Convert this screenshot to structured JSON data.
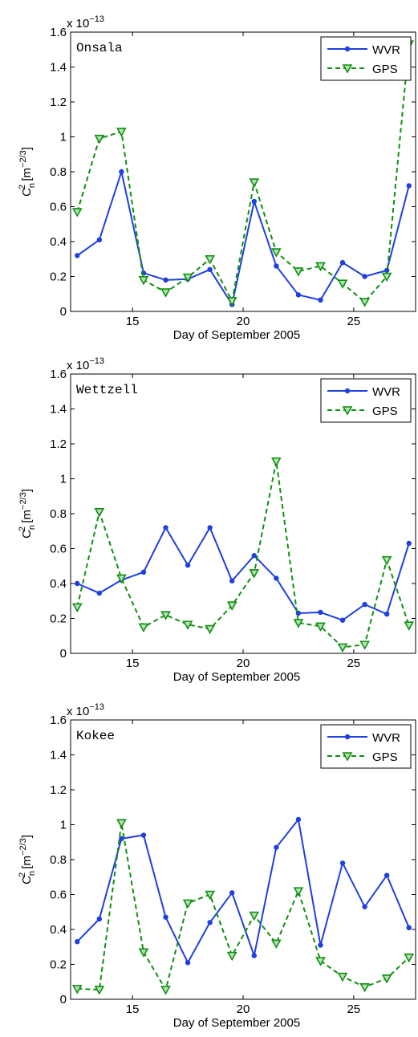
{
  "chart_data": [
    {
      "type": "line",
      "title": "Onsala",
      "legend": "upper right",
      "x": [
        12.5,
        13.5,
        14.5,
        15.5,
        16.5,
        17.5,
        18.5,
        19.5,
        20.5,
        21.5,
        22.5,
        23.5,
        24.5,
        25.5,
        26.5,
        27.5
      ],
      "series": [
        {
          "name": "WVR",
          "color": "#1f3fe0",
          "marker": "circle",
          "dash": false,
          "values": [
            0.32,
            0.41,
            0.8,
            0.22,
            0.18,
            0.185,
            0.24,
            0.04,
            0.63,
            0.26,
            0.095,
            0.065,
            0.28,
            0.2,
            0.235,
            0.72
          ]
        },
        {
          "name": "GPS",
          "color": "#109010",
          "marker": "triangle-down",
          "dash": true,
          "values": [
            0.57,
            0.99,
            1.03,
            0.18,
            0.11,
            0.195,
            0.3,
            0.06,
            0.74,
            0.34,
            0.23,
            0.26,
            0.16,
            0.055,
            0.2,
            1.53
          ]
        }
      ],
      "xlim": [
        12.2,
        27.8
      ],
      "xticks": [
        15,
        20,
        25
      ],
      "ylim": [
        0,
        1.6
      ],
      "yticks": [
        0,
        0.2,
        0.4,
        0.6,
        0.8,
        1,
        1.2,
        1.4,
        1.6
      ],
      "xlabel": "Day of September 2005",
      "ylabel": [
        "C",
        "n",
        "2",
        " [m",
        "−2/3",
        "]"
      ],
      "multiplier": [
        "x 10",
        "−13"
      ]
    },
    {
      "type": "line",
      "title": "Wettzell",
      "legend": "upper right",
      "x": [
        12.5,
        13.5,
        14.5,
        15.5,
        16.5,
        17.5,
        18.5,
        19.5,
        20.5,
        21.5,
        22.5,
        23.5,
        24.5,
        25.5,
        26.5,
        27.5
      ],
      "series": [
        {
          "name": "WVR",
          "color": "#1f3fe0",
          "marker": "circle",
          "dash": false,
          "values": [
            0.4,
            0.345,
            0.42,
            0.465,
            0.72,
            0.505,
            0.72,
            0.415,
            0.56,
            0.43,
            0.23,
            0.235,
            0.19,
            0.28,
            0.225,
            0.63
          ]
        },
        {
          "name": "GPS",
          "color": "#109010",
          "marker": "triangle-down",
          "dash": true,
          "values": [
            0.265,
            0.81,
            0.43,
            0.15,
            0.22,
            0.165,
            0.14,
            0.275,
            0.46,
            1.1,
            0.175,
            0.155,
            0.035,
            0.05,
            0.535,
            0.16
          ]
        }
      ],
      "xlim": [
        12.2,
        27.8
      ],
      "xticks": [
        15,
        20,
        25
      ],
      "ylim": [
        0,
        1.6
      ],
      "yticks": [
        0,
        0.2,
        0.4,
        0.6,
        0.8,
        1,
        1.2,
        1.4,
        1.6
      ],
      "xlabel": "Day of September 2005",
      "ylabel": [
        "C",
        "n",
        "2",
        " [m",
        "−2/3",
        "]"
      ],
      "multiplier": [
        "x 10",
        "−13"
      ]
    },
    {
      "type": "line",
      "title": "Kokee",
      "legend": "upper right",
      "x": [
        12.5,
        13.5,
        14.5,
        15.5,
        16.5,
        17.5,
        18.5,
        19.5,
        20.5,
        21.5,
        22.5,
        23.5,
        24.5,
        25.5,
        26.5,
        27.5
      ],
      "series": [
        {
          "name": "WVR",
          "color": "#1f3fe0",
          "marker": "circle",
          "dash": false,
          "values": [
            0.33,
            0.46,
            0.92,
            0.94,
            0.47,
            0.21,
            0.44,
            0.61,
            0.25,
            0.87,
            1.03,
            0.31,
            0.78,
            0.53,
            0.71,
            0.41
          ]
        },
        {
          "name": "GPS",
          "color": "#109010",
          "marker": "triangle-down",
          "dash": true,
          "values": [
            0.06,
            0.055,
            1.01,
            0.27,
            0.055,
            0.55,
            0.6,
            0.25,
            0.48,
            0.32,
            0.62,
            0.22,
            0.13,
            0.07,
            0.12,
            0.24
          ]
        }
      ],
      "xlim": [
        12.2,
        27.8
      ],
      "xticks": [
        15,
        20,
        25
      ],
      "ylim": [
        0,
        1.6
      ],
      "yticks": [
        0,
        0.2,
        0.4,
        0.6,
        0.8,
        1,
        1.2,
        1.4,
        1.6
      ],
      "xlabel": "Day of September 2005",
      "ylabel": [
        "C",
        "n",
        "2",
        " [m",
        "−2/3",
        "]"
      ],
      "multiplier": [
        "x 10",
        "−13"
      ]
    }
  ]
}
